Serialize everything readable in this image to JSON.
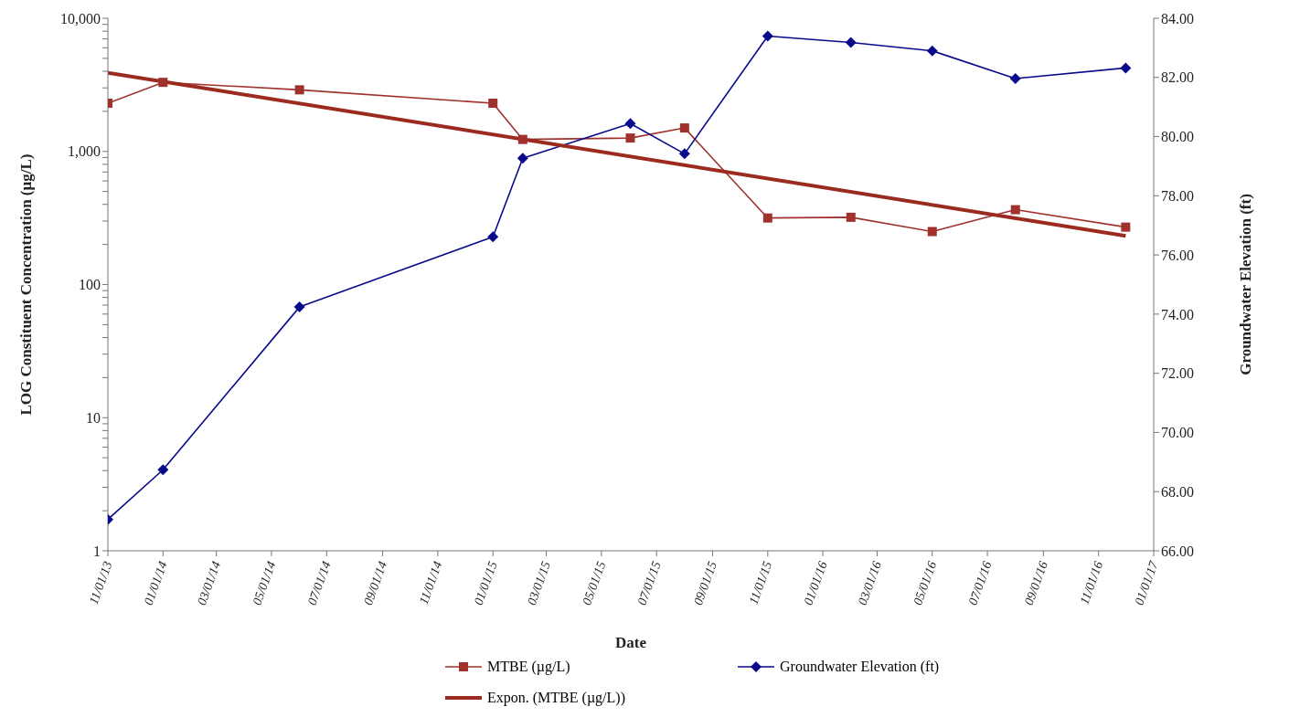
{
  "chart_data": {
    "type": "line",
    "xlabel": "Date",
    "ylabel": "LOG Constituent Concentration (µg/L)",
    "y2label": "Groundwater Elevation (ft)",
    "log": "y",
    "legend": "bottom",
    "xlim": [
      "2013-11-01",
      "2017-01-01"
    ],
    "xticks": [
      {
        "value": "2013-11-01",
        "label": "11/01/13"
      },
      {
        "value": "2014-01-01",
        "label": "01/01/14"
      },
      {
        "value": "2014-03-01",
        "label": "03/01/14"
      },
      {
        "value": "2014-05-01",
        "label": "05/01/14"
      },
      {
        "value": "2014-07-01",
        "label": "07/01/14"
      },
      {
        "value": "2014-09-01",
        "label": "09/01/14"
      },
      {
        "value": "2014-11-01",
        "label": "11/01/14"
      },
      {
        "value": "2015-01-01",
        "label": "01/01/15"
      },
      {
        "value": "2015-03-01",
        "label": "03/01/15"
      },
      {
        "value": "2015-05-01",
        "label": "05/01/15"
      },
      {
        "value": "2015-07-01",
        "label": "07/01/15"
      },
      {
        "value": "2015-09-01",
        "label": "09/01/15"
      },
      {
        "value": "2015-11-01",
        "label": "11/01/15"
      },
      {
        "value": "2016-01-01",
        "label": "01/01/16"
      },
      {
        "value": "2016-03-01",
        "label": "03/01/16"
      },
      {
        "value": "2016-05-01",
        "label": "05/01/16"
      },
      {
        "value": "2016-07-01",
        "label": "07/01/16"
      },
      {
        "value": "2016-09-01",
        "label": "09/01/16"
      },
      {
        "value": "2016-11-01",
        "label": "11/01/16"
      },
      {
        "value": "2017-01-01",
        "label": "01/01/17"
      }
    ],
    "ylim": [
      1,
      10000
    ],
    "yticks": [
      1,
      {
        "value": 2,
        "label": null
      },
      {
        "value": 3,
        "label": null
      },
      {
        "value": 4,
        "label": null
      },
      {
        "value": 5,
        "label": null
      },
      {
        "value": 6,
        "label": null
      },
      {
        "value": 7,
        "label": null
      },
      {
        "value": 8,
        "label": null
      },
      {
        "value": 9,
        "label": null
      },
      10,
      {
        "value": 20,
        "label": null
      },
      {
        "value": 30,
        "label": null
      },
      {
        "value": 40,
        "label": null
      },
      {
        "value": 50,
        "label": null
      },
      {
        "value": 60,
        "label": null
      },
      {
        "value": 70,
        "label": null
      },
      {
        "value": 80,
        "label": null
      },
      {
        "value": 90,
        "label": null
      },
      100,
      {
        "value": 200,
        "label": null
      },
      {
        "value": 300,
        "label": null
      },
      {
        "value": 400,
        "label": null
      },
      {
        "value": 500,
        "label": null
      },
      {
        "value": 600,
        "label": null
      },
      {
        "value": 700,
        "label": null
      },
      {
        "value": 800,
        "label": null
      },
      {
        "value": 900,
        "label": null
      },
      {
        "value": 1000,
        "label": "1,000"
      },
      {
        "value": 2000,
        "label": null
      },
      {
        "value": 3000,
        "label": null
      },
      {
        "value": 4000,
        "label": null
      },
      {
        "value": 5000,
        "label": null
      },
      {
        "value": 6000,
        "label": null
      },
      {
        "value": 7000,
        "label": null
      },
      {
        "value": 8000,
        "label": null
      },
      {
        "value": 9000,
        "label": null
      },
      {
        "value": 10000,
        "label": "10,000"
      }
    ],
    "y2lim": [
      66,
      84
    ],
    "y2ticks": [
      {
        "value": 66,
        "label": "66.00"
      },
      {
        "value": 68,
        "label": "68.00"
      },
      {
        "value": 70,
        "label": "70.00"
      },
      {
        "value": 72,
        "label": "72.00"
      },
      {
        "value": 74,
        "label": "74.00"
      },
      {
        "value": 76,
        "label": "76.00"
      },
      {
        "value": 78,
        "label": "78.00"
      },
      {
        "value": 80,
        "label": "80.00"
      },
      {
        "value": 82,
        "label": "82.00"
      },
      {
        "value": 84,
        "label": "84.00"
      }
    ],
    "x": [
      "2013-11-01",
      "2014-01-01",
      "2014-06-01",
      "2015-01-01",
      "2015-02-03",
      "2015-06-02",
      "2015-08-01",
      "2015-11-01",
      "2016-02-01",
      "2016-05-01",
      "2016-08-01",
      "2016-12-01"
    ],
    "series": [
      {
        "name": "MTBE (µg/L)",
        "color": "#a0312d",
        "marker": "square",
        "values": [
          2300,
          3300,
          2900,
          2300,
          1230,
          1260,
          1500,
          316,
          320,
          250,
          365,
          270
        ]
      },
      {
        "name": "Groundwater Elevation (ft)",
        "color": "#0a0a8c",
        "marker": "diamond",
        "axis": "y2",
        "values": [
          67.06,
          68.74,
          74.24,
          76.61,
          79.27,
          80.44,
          79.42,
          83.4,
          83.18,
          82.9,
          81.96,
          82.32
        ]
      },
      {
        "name": "Expon. (MTBE (µg/L))",
        "color": "#9b2a1f",
        "marker": "none",
        "type": "line",
        "x": [
          "2013-11-01",
          "2016-12-01"
        ],
        "values": [
          3900,
          232
        ]
      }
    ]
  }
}
